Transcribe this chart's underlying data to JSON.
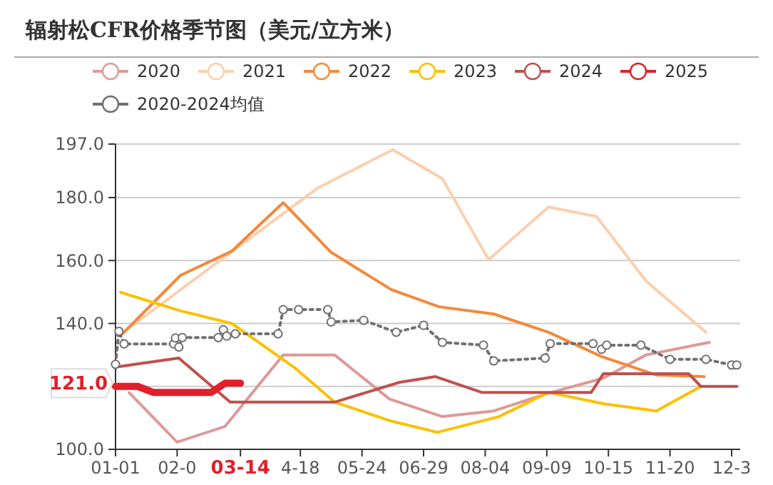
{
  "chart_data": {
    "type": "line",
    "title": "辐射松CFR价格季节图（美元/立方米）",
    "xlim": [
      "--01-01",
      "--12-31"
    ],
    "xticks": [
      {
        "value": "--01-01",
        "label": "01-01"
      },
      {
        "value": "--02-06",
        "label": "02-0"
      },
      {
        "value": "--03-14",
        "label": "03-14"
      },
      {
        "value": "--04-18",
        "label": "4-18"
      },
      {
        "value": "--05-24",
        "label": "05-24"
      },
      {
        "value": "--06-29",
        "label": "06-29"
      },
      {
        "value": "--08-04",
        "label": "08-04"
      },
      {
        "value": "--09-09",
        "label": "09-09"
      },
      {
        "value": "--10-15",
        "label": "10-15"
      },
      {
        "value": "--11-20",
        "label": "11-20"
      },
      {
        "value": "--12-26",
        "label": "12-3"
      }
    ],
    "ylim": [
      100,
      197
    ],
    "yticks": [
      {
        "value": 100,
        "label": "100.0"
      },
      {
        "value": 120,
        "label": null
      },
      {
        "value": 140,
        "label": "140.0"
      },
      {
        "value": 160,
        "label": "160.0"
      },
      {
        "value": 180,
        "label": "180.0"
      },
      {
        "value": 197,
        "label": "197.0"
      }
    ],
    "grid": "y",
    "legend": "top",
    "marker": "none",
    "annotations": [
      "121.0"
    ],
    "series": [
      {
        "name": "2020",
        "color": "#dc9a98",
        "x": [
          "--01-09",
          "--02-06",
          "--03-05",
          "--04-08",
          "--05-08",
          "--06-09",
          "--07-10",
          "--08-09",
          "--09-09",
          "--10-12",
          "--11-06",
          "--12-13"
        ],
        "values": [
          118,
          102.3,
          107.3,
          130,
          130,
          116,
          110.4,
          112.2,
          117.7,
          122.6,
          130,
          134
        ]
      },
      {
        "name": "2021",
        "color": "#fbcfae",
        "x": [
          "--01-05",
          "--04-28",
          "--06-11",
          "--07-10",
          "--08-06",
          "--09-10",
          "--10-08",
          "--11-06",
          "--12-11"
        ],
        "values": [
          137,
          183,
          195.2,
          186,
          160.3,
          177,
          174,
          153.5,
          137.2
        ]
      },
      {
        "name": "2022",
        "color": "#f3893b",
        "x": [
          "--01-05",
          "--02-08",
          "--03-09",
          "--04-08",
          "--05-06",
          "--06-10",
          "--07-08",
          "--08-09",
          "--09-10",
          "--10-11",
          "--11-12",
          "--12-10"
        ],
        "values": [
          136.7,
          155.3,
          163,
          178.4,
          162.6,
          150.8,
          145.3,
          143,
          137.2,
          129.5,
          123.6,
          123.1
        ]
      },
      {
        "name": "2023",
        "color": "#fcc000",
        "x": [
          "--01-04",
          "--02-08",
          "--03-09",
          "--04-15",
          "--05-08",
          "--06-10",
          "--07-07",
          "--08-12",
          "--09-10",
          "--10-12",
          "--11-12",
          "--12-08"
        ],
        "values": [
          149.9,
          144,
          140,
          125.8,
          115,
          109,
          105.4,
          110.4,
          118.1,
          114.5,
          112.2,
          120
        ]
      },
      {
        "name": "2024",
        "color": "#c0504d",
        "x": [
          "--01-03",
          "--02-07",
          "--03-08",
          "--05-08",
          "--06-15",
          "--07-06",
          "--08-02",
          "--10-05",
          "--10-12",
          "--12-01",
          "--12-08",
          "--12-29"
        ],
        "values": [
          126.3,
          129,
          115,
          115,
          121.3,
          123.1,
          118.1,
          118.1,
          124,
          124,
          120,
          120
        ]
      },
      {
        "name": "2025",
        "color": "#e0202a",
        "x": [
          "--01-01",
          "--01-14",
          "--01-23",
          "--02-26",
          "--03-05",
          "--03-14"
        ],
        "values": [
          120,
          120,
          118.1,
          118.1,
          121,
          121
        ]
      },
      {
        "name": "2020-2024均值",
        "color": "#707070",
        "line_style": "dotted",
        "marker": "circle",
        "x": [
          "--01-01",
          "--01-03",
          "--01-06",
          "--02-04",
          "--02-05",
          "--02-07",
          "--02-09",
          "--03-01",
          "--03-04",
          "--03-06",
          "--03-11",
          "--04-05",
          "--04-08",
          "--04-17",
          "--05-04",
          "--05-06",
          "--05-25",
          "--06-13",
          "--06-29",
          "--07-10",
          "--08-03",
          "--08-09",
          "--09-08",
          "--09-11",
          "--10-06",
          "--10-11",
          "--10-14",
          "--11-03",
          "--11-20",
          "--12-11",
          "--12-26",
          "--12-29"
        ],
        "values": [
          127,
          137.5,
          133.5,
          133.5,
          135.4,
          132.5,
          135.5,
          135.5,
          138,
          136,
          136.7,
          136.7,
          144.4,
          144.4,
          144.4,
          140.5,
          141,
          137.2,
          139.4,
          134,
          133.1,
          128.1,
          129,
          133.6,
          133.6,
          131.8,
          133.1,
          133.1,
          128.6,
          128.6,
          126.8,
          126.8
        ]
      }
    ]
  }
}
